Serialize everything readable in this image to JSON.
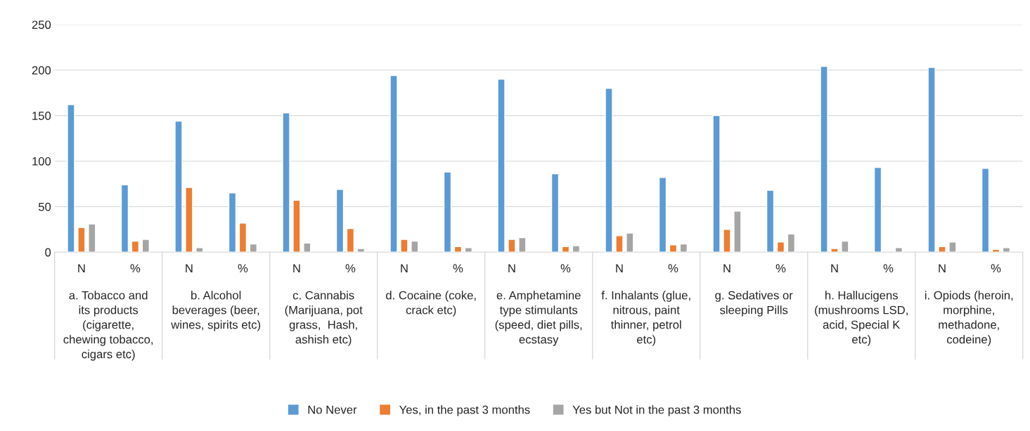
{
  "chart_data": {
    "type": "bar",
    "categories": [
      "N",
      "%",
      "N",
      "%",
      "N",
      "%",
      "N",
      "%",
      "N",
      "%",
      "N",
      "%",
      "N",
      "%",
      "N",
      "%",
      "N",
      "%"
    ],
    "series": [
      {
        "name": "No Never",
        "color": "#5b9bd5",
        "values": [
          162,
          74,
          144,
          65,
          153,
          69,
          194,
          88,
          190,
          86,
          180,
          82,
          150,
          68,
          204,
          93,
          203,
          92
        ]
      },
      {
        "name": "Yes, in the past 3 months",
        "color": "#ed7d31",
        "values": [
          27,
          12,
          71,
          32,
          57,
          26,
          14,
          6,
          14,
          6,
          18,
          8,
          25,
          11,
          4,
          null,
          6,
          3
        ]
      },
      {
        "name": "Yes but Not in the past 3 months",
        "color": "#a5a5a5",
        "values": [
          31,
          14,
          5,
          9,
          10,
          4,
          12,
          5,
          16,
          7,
          21,
          9,
          45,
          20,
          12,
          5,
          11,
          5
        ]
      }
    ],
    "annotations": [
      "a. Tobacco and\nits products\n(cigarette,\nchewing tobacco,\ncigars etc)",
      "b. Alcohol\nbeverages (beer,\nwines, spirits etc)",
      "c. Cannabis\n(Marijuana, pot\ngrass,  Hash,\nashish etc)",
      "d. Cocaine (coke,\ncrack etc)",
      "e. Amphetamine\ntype stimulants\n(speed, diet pills,\necstasy",
      "f. Inhalants (glue,\nnitrous, paint\nthinner, petrol\netc)",
      "g. Sedatives or\nsleeping Pills",
      "h. Hallucigens\n(mushrooms LSD,\nacid, Special K\netc)",
      "i. Opiods (heroin,\nmorphine,\nmethadone,\ncodeine)"
    ],
    "ylim": [
      0,
      250
    ],
    "yticks": [
      0,
      50,
      100,
      150,
      200,
      250
    ],
    "grid": "y",
    "legend": "bottom"
  }
}
